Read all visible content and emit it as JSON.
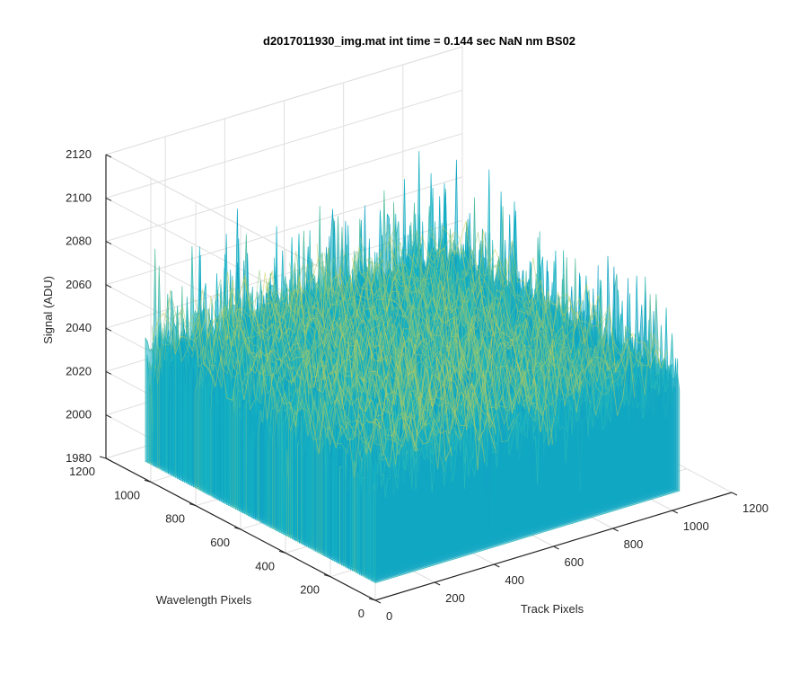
{
  "chart_data": {
    "type": "surface",
    "title": "d2017011930_img.mat int time = 0.144 sec  NaN nm BS02",
    "xlabel": "Track Pixels",
    "ylabel": "Wavelength Pixels",
    "zlabel": "Signal (ADU)",
    "xlim": [
      0,
      1200
    ],
    "ylim": [
      0,
      1200
    ],
    "zlim": [
      1980,
      2120
    ],
    "xticks": [
      "0",
      "200",
      "400",
      "600",
      "800",
      "1000",
      "1200"
    ],
    "yticks": [
      "0",
      "200",
      "400",
      "600",
      "800",
      "1000",
      "1200"
    ],
    "zticks": [
      "1980",
      "2000",
      "2020",
      "2040",
      "2060",
      "2080",
      "2100",
      "2120"
    ],
    "data_extent": {
      "x": [
        0,
        1024
      ],
      "y": [
        0,
        1024
      ]
    },
    "signal_summary": {
      "mean": 2038,
      "min": 1995,
      "max": 2105
    },
    "colormap": "parula",
    "colors": {
      "low": "#0072bd",
      "mid": "#15b4c4",
      "high": "#d6d04a",
      "grid": "#dfdfdf",
      "axis": "#262626"
    },
    "grid": true,
    "view": "3d"
  }
}
